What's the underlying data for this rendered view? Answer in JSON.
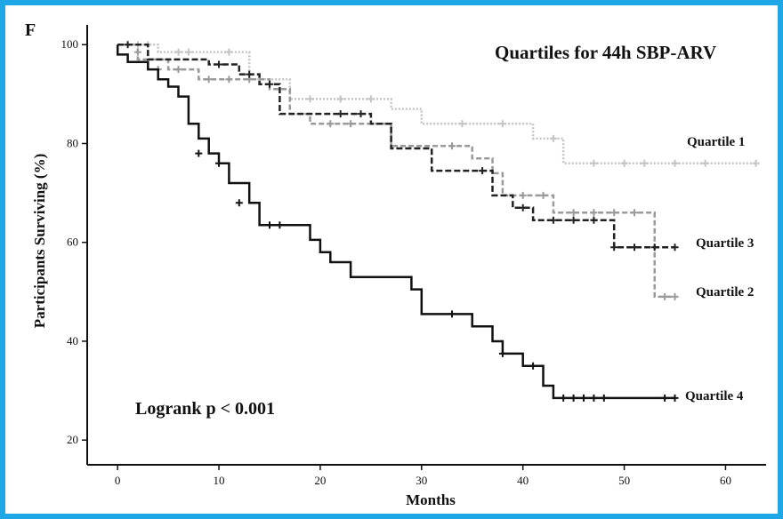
{
  "chart_data": {
    "type": "line",
    "panel_letter": "F",
    "title": "Quartiles for 44h SBP-ARV",
    "xlabel": "Months",
    "ylabel": "Participants Surviving (%)",
    "xlim": [
      -3,
      64
    ],
    "ylim": [
      15,
      104
    ],
    "x_ticks": [
      0,
      10,
      20,
      30,
      40,
      50,
      60
    ],
    "y_ticks": [
      20,
      40,
      60,
      80,
      100
    ],
    "grid": false,
    "annotation": "Logrank p < 0.001",
    "series": [
      {
        "name": "Quartile 1",
        "color": "#c4c4c4",
        "dash": "2,2",
        "steps": [
          [
            0,
            100
          ],
          [
            4,
            100
          ],
          [
            4,
            98.5
          ],
          [
            13,
            98.5
          ],
          [
            13,
            93
          ],
          [
            17,
            93
          ],
          [
            17,
            89
          ],
          [
            27,
            89
          ],
          [
            27,
            87
          ],
          [
            30,
            87
          ],
          [
            30,
            84
          ],
          [
            41,
            84
          ],
          [
            41,
            81
          ],
          [
            44,
            81
          ],
          [
            44,
            76
          ],
          [
            63,
            76
          ]
        ],
        "censors": [
          [
            2,
            100
          ],
          [
            3,
            100
          ],
          [
            6,
            98.5
          ],
          [
            7,
            98.5
          ],
          [
            11,
            98.5
          ],
          [
            19,
            89
          ],
          [
            22,
            89
          ],
          [
            25,
            89
          ],
          [
            34,
            84
          ],
          [
            38,
            84
          ],
          [
            43,
            81
          ],
          [
            47,
            76
          ],
          [
            50,
            76
          ],
          [
            52,
            76
          ],
          [
            55,
            76
          ],
          [
            58,
            76
          ],
          [
            63,
            76
          ]
        ]
      },
      {
        "name": "Quartile 2",
        "color": "#9a9a9a",
        "dash": "6,3",
        "steps": [
          [
            0,
            100
          ],
          [
            2,
            100
          ],
          [
            2,
            97
          ],
          [
            5,
            97
          ],
          [
            5,
            95
          ],
          [
            8,
            95
          ],
          [
            8,
            93
          ],
          [
            15,
            93
          ],
          [
            15,
            91
          ],
          [
            17,
            91
          ],
          [
            17,
            86
          ],
          [
            19,
            86
          ],
          [
            19,
            84
          ],
          [
            27,
            84
          ],
          [
            27,
            79.5
          ],
          [
            35,
            79.5
          ],
          [
            35,
            77
          ],
          [
            37,
            77
          ],
          [
            37,
            74
          ],
          [
            38,
            74
          ],
          [
            38,
            69.5
          ],
          [
            43,
            69.5
          ],
          [
            43,
            66
          ],
          [
            53,
            66
          ],
          [
            53,
            49
          ],
          [
            55,
            49
          ]
        ],
        "censors": [
          [
            2,
            98.5
          ],
          [
            4,
            95
          ],
          [
            6,
            95
          ],
          [
            9,
            93
          ],
          [
            11,
            93
          ],
          [
            13,
            93
          ],
          [
            21,
            84
          ],
          [
            23,
            84
          ],
          [
            33,
            79.5
          ],
          [
            40,
            69.5
          ],
          [
            42,
            69.5
          ],
          [
            45,
            66
          ],
          [
            47,
            66
          ],
          [
            49,
            66
          ],
          [
            51,
            66
          ],
          [
            54,
            49
          ],
          [
            55,
            49
          ]
        ]
      },
      {
        "name": "Quartile 3",
        "color": "#222222",
        "dash": "7,3",
        "steps": [
          [
            0,
            100
          ],
          [
            3,
            100
          ],
          [
            3,
            97
          ],
          [
            9,
            97
          ],
          [
            9,
            96
          ],
          [
            12,
            96
          ],
          [
            12,
            94
          ],
          [
            14,
            94
          ],
          [
            14,
            92
          ],
          [
            16,
            92
          ],
          [
            16,
            86
          ],
          [
            25,
            86
          ],
          [
            25,
            84
          ],
          [
            27,
            84
          ],
          [
            27,
            79
          ],
          [
            31,
            79
          ],
          [
            31,
            74.5
          ],
          [
            37,
            74.5
          ],
          [
            37,
            69.5
          ],
          [
            39,
            69.5
          ],
          [
            39,
            67
          ],
          [
            41,
            67
          ],
          [
            41,
            64.5
          ],
          [
            49,
            64.5
          ],
          [
            49,
            59
          ],
          [
            55,
            59
          ]
        ],
        "censors": [
          [
            1,
            100
          ],
          [
            10,
            96
          ],
          [
            13,
            94
          ],
          [
            15,
            92
          ],
          [
            22,
            86
          ],
          [
            24,
            86
          ],
          [
            36,
            74.5
          ],
          [
            40,
            67
          ],
          [
            43,
            64.5
          ],
          [
            45,
            64.5
          ],
          [
            47,
            64.5
          ],
          [
            49,
            59
          ],
          [
            51,
            59
          ],
          [
            53,
            59
          ],
          [
            55,
            59
          ]
        ]
      },
      {
        "name": "Quartile 4",
        "color": "#111111",
        "dash": "",
        "steps": [
          [
            0,
            100
          ],
          [
            0,
            98
          ],
          [
            1,
            98
          ],
          [
            1,
            96.5
          ],
          [
            3,
            96.5
          ],
          [
            3,
            95
          ],
          [
            4,
            95
          ],
          [
            4,
            93
          ],
          [
            5,
            93
          ],
          [
            5,
            91.5
          ],
          [
            6,
            91.5
          ],
          [
            6,
            89.5
          ],
          [
            7,
            89.5
          ],
          [
            7,
            84
          ],
          [
            8,
            84
          ],
          [
            8,
            81
          ],
          [
            9,
            81
          ],
          [
            9,
            78
          ],
          [
            10,
            78
          ],
          [
            10,
            76
          ],
          [
            11,
            76
          ],
          [
            11,
            72
          ],
          [
            13,
            72
          ],
          [
            13,
            68
          ],
          [
            14,
            68
          ],
          [
            14,
            63.5
          ],
          [
            19,
            63.5
          ],
          [
            19,
            60.5
          ],
          [
            20,
            60.5
          ],
          [
            20,
            58
          ],
          [
            21,
            58
          ],
          [
            21,
            56
          ],
          [
            23,
            56
          ],
          [
            23,
            53
          ],
          [
            29,
            53
          ],
          [
            29,
            50.5
          ],
          [
            30,
            50.5
          ],
          [
            30,
            45.5
          ],
          [
            35,
            45.5
          ],
          [
            35,
            43
          ],
          [
            37,
            43
          ],
          [
            37,
            40
          ],
          [
            38,
            40
          ],
          [
            38,
            37.5
          ],
          [
            40,
            37.5
          ],
          [
            40,
            35
          ],
          [
            42,
            35
          ],
          [
            42,
            31
          ],
          [
            43,
            31
          ],
          [
            43,
            28.5
          ],
          [
            55,
            28.5
          ]
        ],
        "censors": [
          [
            8,
            78
          ],
          [
            10,
            76
          ],
          [
            12,
            68
          ],
          [
            15,
            63.5
          ],
          [
            16,
            63.5
          ],
          [
            33,
            45.5
          ],
          [
            38,
            37.5
          ],
          [
            41,
            35
          ],
          [
            44,
            28.5
          ],
          [
            45,
            28.5
          ],
          [
            46,
            28.5
          ],
          [
            47,
            28.5
          ],
          [
            48,
            28.5
          ],
          [
            54,
            28.5
          ],
          [
            55,
            28.5
          ]
        ]
      }
    ]
  }
}
